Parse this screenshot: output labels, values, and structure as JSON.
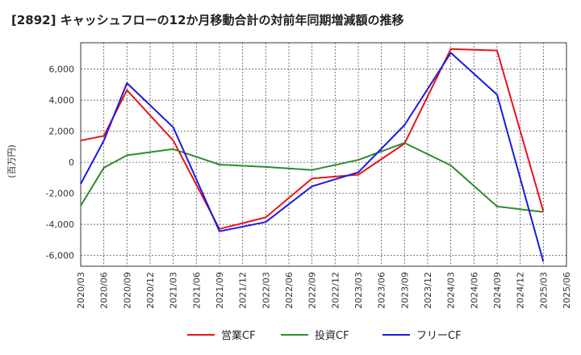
{
  "chart_data": {
    "type": "line",
    "title": "[2892]  キャッシュフローの12か月移動合計の対前年同期増減額の推移",
    "ylabel": "(百万円)",
    "xlabel": "",
    "ylim": [
      -6700,
      7700
    ],
    "yticks": [
      -6000,
      -4000,
      -2000,
      0,
      2000,
      4000,
      6000
    ],
    "ytick_labels": [
      "-6,000",
      "-4,000",
      "-2,000",
      "0",
      "2,000",
      "4,000",
      "6,000"
    ],
    "categories": [
      "2020/03",
      "2020/06",
      "2020/09",
      "2020/12",
      "2021/03",
      "2021/06",
      "2021/09",
      "2021/12",
      "2022/03",
      "2022/06",
      "2022/09",
      "2022/12",
      "2023/03",
      "2023/06",
      "2023/09",
      "2023/12",
      "2024/03",
      "2024/06",
      "2024/09",
      "2024/12",
      "2025/03",
      "2025/06"
    ],
    "grid": true,
    "legend_position": "bottom",
    "series": [
      {
        "name": "営業CF",
        "color": "#e8141b",
        "values": [
          1400,
          1700,
          4650,
          null,
          1400,
          null,
          -4300,
          null,
          -3550,
          null,
          -1050,
          null,
          -800,
          null,
          1200,
          null,
          7300,
          null,
          7200,
          null,
          -3150,
          null
        ]
      },
      {
        "name": "投資CF",
        "color": "#2e8b2e",
        "values": [
          -2800,
          -350,
          450,
          null,
          850,
          null,
          -150,
          null,
          -300,
          null,
          -500,
          null,
          150,
          null,
          1250,
          null,
          -200,
          null,
          -2850,
          null,
          -3200,
          null
        ]
      },
      {
        "name": "フリーCF",
        "color": "#1a1adf",
        "values": [
          -1400,
          1400,
          5100,
          null,
          2250,
          null,
          -4450,
          null,
          -3850,
          null,
          -1550,
          null,
          -650,
          null,
          2400,
          null,
          7050,
          null,
          4350,
          null,
          -6400,
          null
        ]
      }
    ]
  }
}
